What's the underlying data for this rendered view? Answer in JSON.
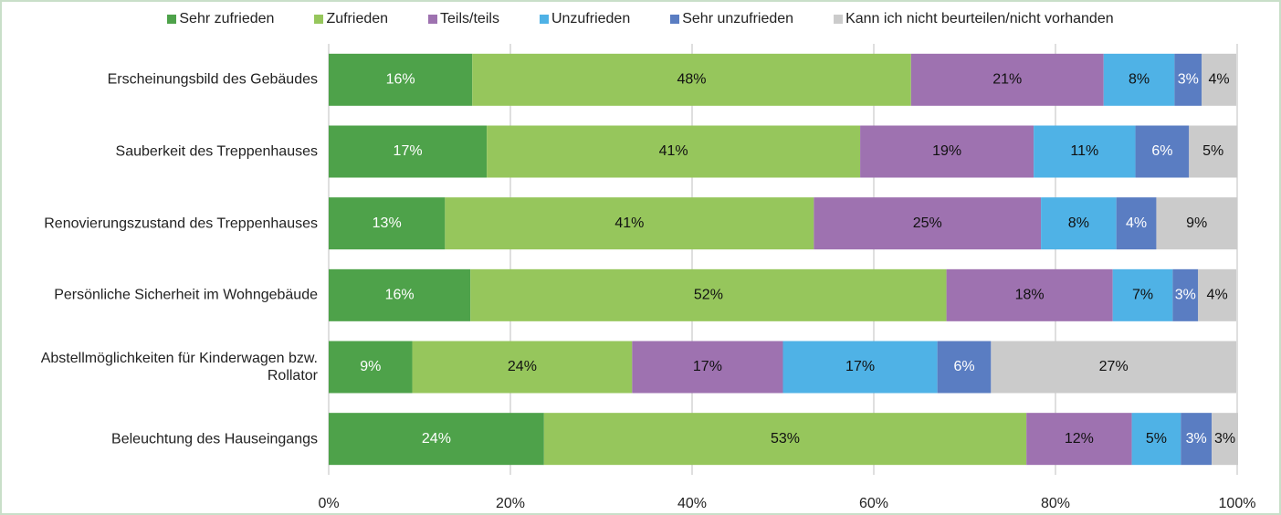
{
  "chart_data": {
    "type": "stacked_barh",
    "categories": [
      "Erscheinungsbild des Gebäudes",
      "Sauberkeit des Treppenhauses",
      "Renovierungszustand des Treppenhauses",
      "Persönliche Sicherheit im Wohngebäude",
      "Abstellmöglichkeiten für Kinderwagen bzw. Rollator",
      "Beleuchtung des Hauseingangs"
    ],
    "series": [
      {
        "name": "Sehr zufrieden",
        "color": "#4ea24a",
        "values": [
          15.8,
          17.4,
          12.8,
          15.6,
          9.2,
          23.7
        ],
        "value_labels": [
          "16%",
          "17%",
          "13%",
          "16%",
          "9%",
          "24%"
        ]
      },
      {
        "name": "Zufrieden",
        "color": "#96c65c",
        "values": [
          48.3,
          41.1,
          40.6,
          52.4,
          24.2,
          53.1
        ],
        "value_labels": [
          "48%",
          "41%",
          "41%",
          "52%",
          "24%",
          "53%"
        ]
      },
      {
        "name": "Teils/teils",
        "color": "#9e72b0",
        "values": [
          21.2,
          19.1,
          25.0,
          18.3,
          16.6,
          11.6
        ],
        "value_labels": [
          "21%",
          "19%",
          "25%",
          "18%",
          "17%",
          "12%"
        ]
      },
      {
        "name": "Unzufrieden",
        "color": "#4fb2e6",
        "values": [
          7.8,
          11.2,
          8.3,
          6.6,
          17.0,
          5.4
        ],
        "value_labels": [
          "8%",
          "11%",
          "8%",
          "7%",
          "17%",
          "5%"
        ]
      },
      {
        "name": "Sehr unzufrieden",
        "color": "#5a7dc2",
        "values": [
          3.0,
          5.9,
          4.4,
          2.8,
          5.9,
          3.4
        ],
        "value_labels": [
          "3%",
          "6%",
          "4%",
          "3%",
          "6%",
          "3%"
        ]
      },
      {
        "name": "Kann ich nicht beurteilen/nicht vorhanden",
        "color": "#cbcbcb",
        "values": [
          3.8,
          5.3,
          8.9,
          4.2,
          27.0,
          2.9
        ],
        "value_labels": [
          "4%",
          "5%",
          "9%",
          "4%",
          "27%",
          "3%"
        ]
      }
    ],
    "xlim": [
      0,
      100
    ],
    "xticks": [
      {
        "value": 0,
        "label": "0%"
      },
      {
        "value": 20,
        "label": "20%"
      },
      {
        "value": 40,
        "label": "40%"
      },
      {
        "value": 60,
        "label": "60%"
      },
      {
        "value": 80,
        "label": "80%"
      },
      {
        "value": 100,
        "label": "100%"
      }
    ],
    "grid": true,
    "legend": "top"
  }
}
